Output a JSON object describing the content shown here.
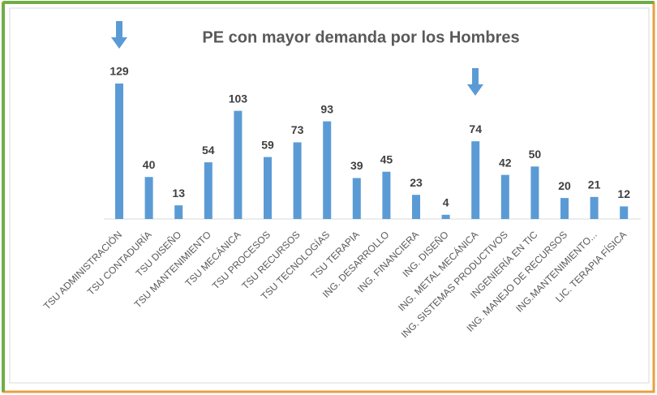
{
  "chart_data": {
    "type": "bar",
    "title": "PE con mayor demanda por los Hombres",
    "categories": [
      "TSU ADMINISTRACIÓN",
      "TSU CONTADURÍA",
      "TSU DISEÑO",
      "TSU MANTENIMIENTO",
      "TSU MECÁNICA",
      "TSU PROCESOS",
      "TSU RECURSOS",
      "TSU TECNOLOGÍAS",
      "TSU TERAPIA",
      "ING. DESARROLLO",
      "ING. FINANCIERA",
      "ING. DISEÑO",
      "ING. METAL MECÁNICA",
      "ING. SISTEMAS PRODUCTIVOS",
      "INGENIERÍA EN TIC",
      "ING. MANEJO DE RECURSOS",
      "ING.MANTENIMIENTO...",
      "LIC. TERAPIA FÍSICA"
    ],
    "values": [
      129,
      40,
      13,
      54,
      103,
      59,
      73,
      93,
      39,
      45,
      23,
      4,
      74,
      42,
      50,
      20,
      21,
      12
    ],
    "color": "#5b9bd5"
  }
}
